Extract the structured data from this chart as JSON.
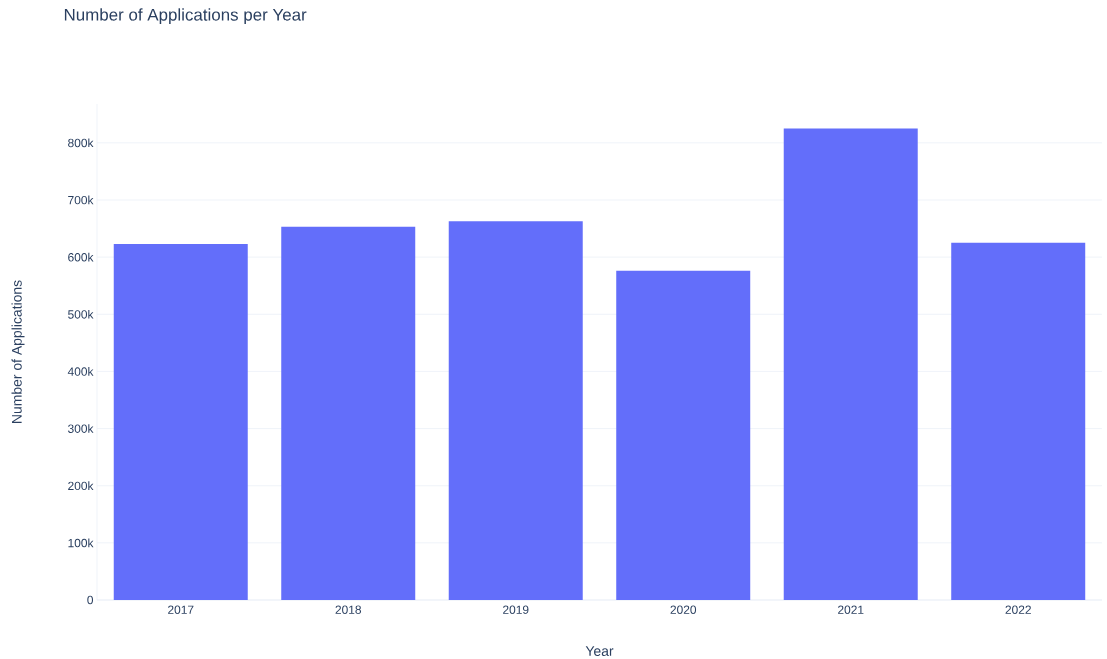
{
  "chart_data": {
    "type": "bar",
    "title": "Number of Applications per Year",
    "xlabel": "Year",
    "ylabel": "Number of Applications",
    "categories": [
      "2017",
      "2018",
      "2019",
      "2020",
      "2021",
      "2022"
    ],
    "values": [
      623000,
      653000,
      663000,
      576000,
      825000,
      625000
    ],
    "color": "#636efa",
    "ylim": [
      0,
      868000
    ],
    "yticks": [
      0,
      {
        "value": 100000,
        "label": "100k"
      },
      {
        "value": 200000,
        "label": "200k"
      },
      {
        "value": 300000,
        "label": "300k"
      },
      {
        "value": 400000,
        "label": "400k"
      },
      {
        "value": 500000,
        "label": "500k"
      },
      {
        "value": 600000,
        "label": "600k"
      },
      {
        "value": 700000,
        "label": "700k"
      },
      {
        "value": 800000,
        "label": "800k"
      }
    ],
    "grid": "y"
  }
}
